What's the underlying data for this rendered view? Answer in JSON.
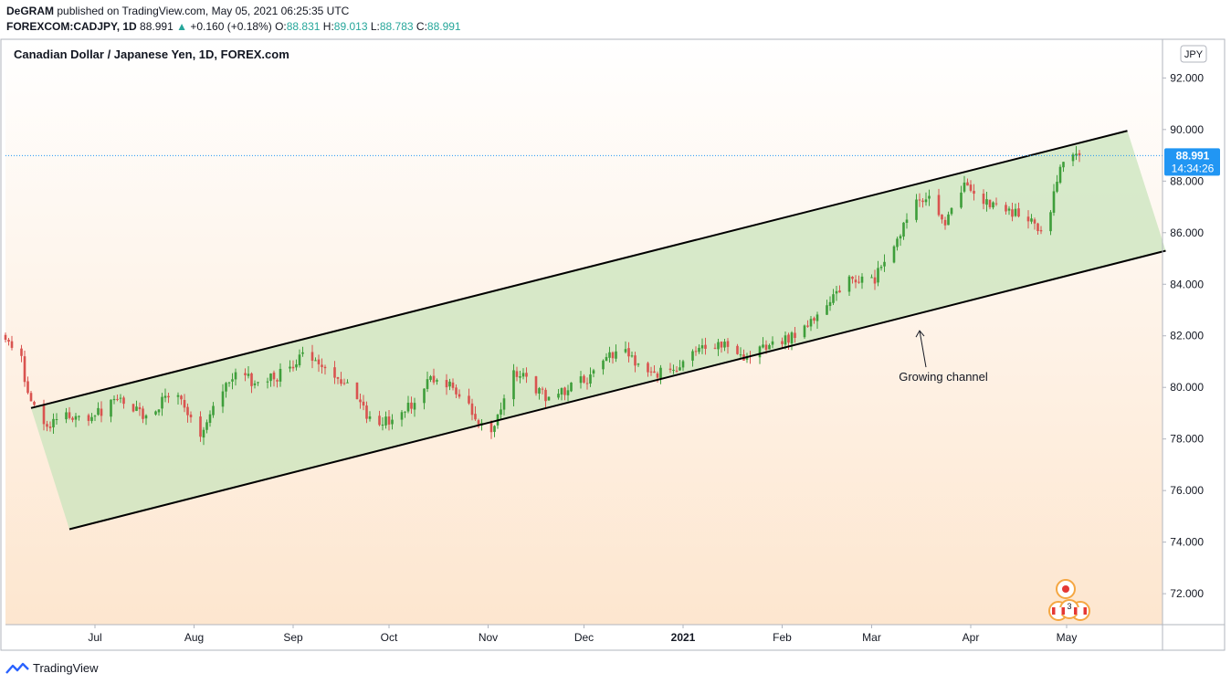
{
  "header": {
    "author": "DeGRAM",
    "published_text": "published on TradingView.com, May 05, 2021 06:25:35 UTC",
    "symbol": "FOREXCOM:CADJPY",
    "interval": ", 1D",
    "last": "88.991",
    "change": "+0.160 (+0.18%)",
    "o_label": "O:",
    "o_value": "88.831",
    "h_label": "H:",
    "h_value": "89.013",
    "l_label": "L:",
    "l_value": "88.783",
    "c_label": "C:",
    "c_value": "88.991"
  },
  "chart_title": "Canadian Dollar / Japanese Yen, 1D, FOREX.com",
  "currency_label": "JPY",
  "price_label": {
    "value": "88.991",
    "countdown": "14:34:26"
  },
  "annotation": "Growing channel",
  "event_badge_count": "3",
  "footer": {
    "brand": "TradingView"
  },
  "colors": {
    "up": "#26a69a",
    "down": "#ef5350",
    "bull_candle": "#3e9e3a",
    "bear_candle": "#d9534f",
    "channel_fill": "#c9e4bc",
    "price_tag": "#2196f3",
    "bg_top": "#ffffff",
    "bg_bottom": "#fde6cf"
  },
  "chart_data": {
    "type": "candlestick",
    "y_axis": {
      "range": [
        70.8,
        93.5
      ],
      "ticks": [
        "92.000",
        "90.000",
        "88.000",
        "86.000",
        "84.000",
        "82.000",
        "80.000",
        "78.000",
        "76.000",
        "74.000",
        "72.000"
      ]
    },
    "x_axis": {
      "range": [
        "2020-06-03",
        "2021-05-31"
      ],
      "ticks": [
        {
          "date": "2020-07-01",
          "label": "Jul"
        },
        {
          "date": "2020-08-01",
          "label": "Aug"
        },
        {
          "date": "2020-09-01",
          "label": "Sep"
        },
        {
          "date": "2020-10-01",
          "label": "Oct"
        },
        {
          "date": "2020-11-01",
          "label": "Nov"
        },
        {
          "date": "2020-12-01",
          "label": "Dec"
        },
        {
          "date": "2021-01-01",
          "label": "2021"
        },
        {
          "date": "2021-02-01",
          "label": "Feb"
        },
        {
          "date": "2021-03-01",
          "label": "Mar"
        },
        {
          "date": "2021-04-01",
          "label": "Apr"
        },
        {
          "date": "2021-05-01",
          "label": "May"
        }
      ]
    },
    "last_price": 88.991,
    "close_path": [
      {
        "date": "2020-06-03",
        "close": 81.8
      },
      {
        "date": "2020-06-08",
        "close": 81.0
      },
      {
        "date": "2020-06-11",
        "close": 79.3
      },
      {
        "date": "2020-06-15",
        "close": 78.5
      },
      {
        "date": "2020-06-22",
        "close": 79.0
      },
      {
        "date": "2020-06-30",
        "close": 78.8
      },
      {
        "date": "2020-07-08",
        "close": 79.6
      },
      {
        "date": "2020-07-16",
        "close": 79.0
      },
      {
        "date": "2020-07-27",
        "close": 79.8
      },
      {
        "date": "2020-08-03",
        "close": 78.0
      },
      {
        "date": "2020-08-07",
        "close": 79.2
      },
      {
        "date": "2020-08-14",
        "close": 80.7
      },
      {
        "date": "2020-08-21",
        "close": 80.1
      },
      {
        "date": "2020-08-28",
        "close": 80.5
      },
      {
        "date": "2020-09-04",
        "close": 81.2
      },
      {
        "date": "2020-09-11",
        "close": 80.6
      },
      {
        "date": "2020-09-18",
        "close": 80.0
      },
      {
        "date": "2020-09-25",
        "close": 78.8
      },
      {
        "date": "2020-10-02",
        "close": 78.7
      },
      {
        "date": "2020-10-09",
        "close": 79.5
      },
      {
        "date": "2020-10-14",
        "close": 80.4
      },
      {
        "date": "2020-10-21",
        "close": 80.0
      },
      {
        "date": "2020-10-30",
        "close": 78.6
      },
      {
        "date": "2020-11-02",
        "close": 78.3
      },
      {
        "date": "2020-11-09",
        "close": 80.7
      },
      {
        "date": "2020-11-13",
        "close": 80.3
      },
      {
        "date": "2020-11-20",
        "close": 79.5
      },
      {
        "date": "2020-11-27",
        "close": 80.0
      },
      {
        "date": "2020-12-04",
        "close": 80.5
      },
      {
        "date": "2020-12-09",
        "close": 81.3
      },
      {
        "date": "2020-12-14",
        "close": 81.5
      },
      {
        "date": "2020-12-21",
        "close": 80.5
      },
      {
        "date": "2020-12-28",
        "close": 80.7
      },
      {
        "date": "2021-01-05",
        "close": 81.3
      },
      {
        "date": "2021-01-12",
        "close": 81.8
      },
      {
        "date": "2021-01-19",
        "close": 81.2
      },
      {
        "date": "2021-01-26",
        "close": 81.5
      },
      {
        "date": "2021-02-02",
        "close": 81.8
      },
      {
        "date": "2021-02-09",
        "close": 82.3
      },
      {
        "date": "2021-02-16",
        "close": 83.5
      },
      {
        "date": "2021-02-23",
        "close": 84.3
      },
      {
        "date": "2021-03-02",
        "close": 84.2
      },
      {
        "date": "2021-03-09",
        "close": 85.8
      },
      {
        "date": "2021-03-15",
        "close": 87.3
      },
      {
        "date": "2021-03-19",
        "close": 87.5
      },
      {
        "date": "2021-03-24",
        "close": 86.5
      },
      {
        "date": "2021-03-30",
        "close": 88.0
      },
      {
        "date": "2021-04-05",
        "close": 87.3
      },
      {
        "date": "2021-04-09",
        "close": 87.0
      },
      {
        "date": "2021-04-14",
        "close": 86.8
      },
      {
        "date": "2021-04-20",
        "close": 86.5
      },
      {
        "date": "2021-04-23",
        "close": 86.0
      },
      {
        "date": "2021-04-26",
        "close": 87.0
      },
      {
        "date": "2021-04-29",
        "close": 88.5
      },
      {
        "date": "2021-05-05",
        "close": 88.991
      }
    ],
    "channel": {
      "upper_line": [
        {
          "date": "2020-06-11",
          "price": 79.2
        },
        {
          "date": "2021-05-20",
          "price": 89.95
        }
      ],
      "lower_line": [
        {
          "date": "2020-06-23",
          "price": 74.5
        },
        {
          "date": "2021-06-01",
          "price": 85.3
        }
      ]
    },
    "annotations": [
      {
        "text": "Growing channel",
        "arrow_to": {
          "date": "2021-03-16",
          "price": 82.2
        }
      }
    ]
  }
}
